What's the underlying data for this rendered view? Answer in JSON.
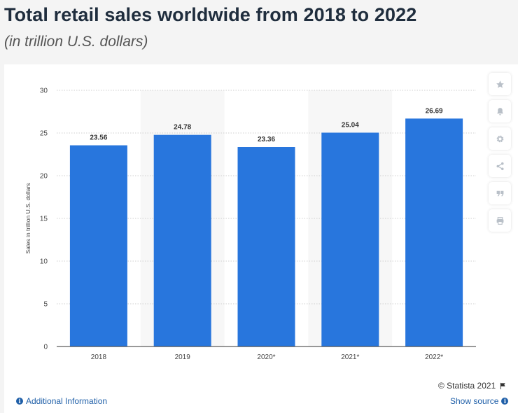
{
  "header": {
    "title": "Total retail sales worldwide from 2018 to 2022",
    "subtitle": "(in trillion U.S. dollars)"
  },
  "chart_data": {
    "type": "bar",
    "title": "Total retail sales worldwide from 2018 to 2022",
    "subtitle": "(in trillion U.S. dollars)",
    "xlabel": "",
    "ylabel": "Sales in trillion U.S. dollars",
    "categories": [
      "2018",
      "2019",
      "2020*",
      "2021*",
      "2022*"
    ],
    "values": [
      23.56,
      24.78,
      23.36,
      25.04,
      26.69
    ],
    "value_labels": [
      "23.56",
      "24.78",
      "23.36",
      "25.04",
      "26.69"
    ],
    "yticks": [
      0,
      5,
      10,
      15,
      20,
      25,
      30
    ],
    "ylim": [
      0,
      30
    ],
    "grid": true,
    "bar_color": "#2876dd",
    "band_color": "#f7f7f7"
  },
  "toolbar": {
    "buttons": [
      {
        "name": "favorite-button",
        "icon": "star-icon"
      },
      {
        "name": "notification-button",
        "icon": "bell-icon"
      },
      {
        "name": "settings-button",
        "icon": "gear-icon"
      },
      {
        "name": "share-button",
        "icon": "share-icon"
      },
      {
        "name": "cite-button",
        "icon": "quote-icon"
      },
      {
        "name": "print-button",
        "icon": "print-icon"
      }
    ]
  },
  "footer": {
    "credit": "© Statista 2021",
    "additional_info": "Additional Information",
    "show_source": "Show source"
  },
  "colors": {
    "link": "#1f5fa8",
    "title": "#1f2d3d",
    "icon": "#b9c0c8"
  }
}
